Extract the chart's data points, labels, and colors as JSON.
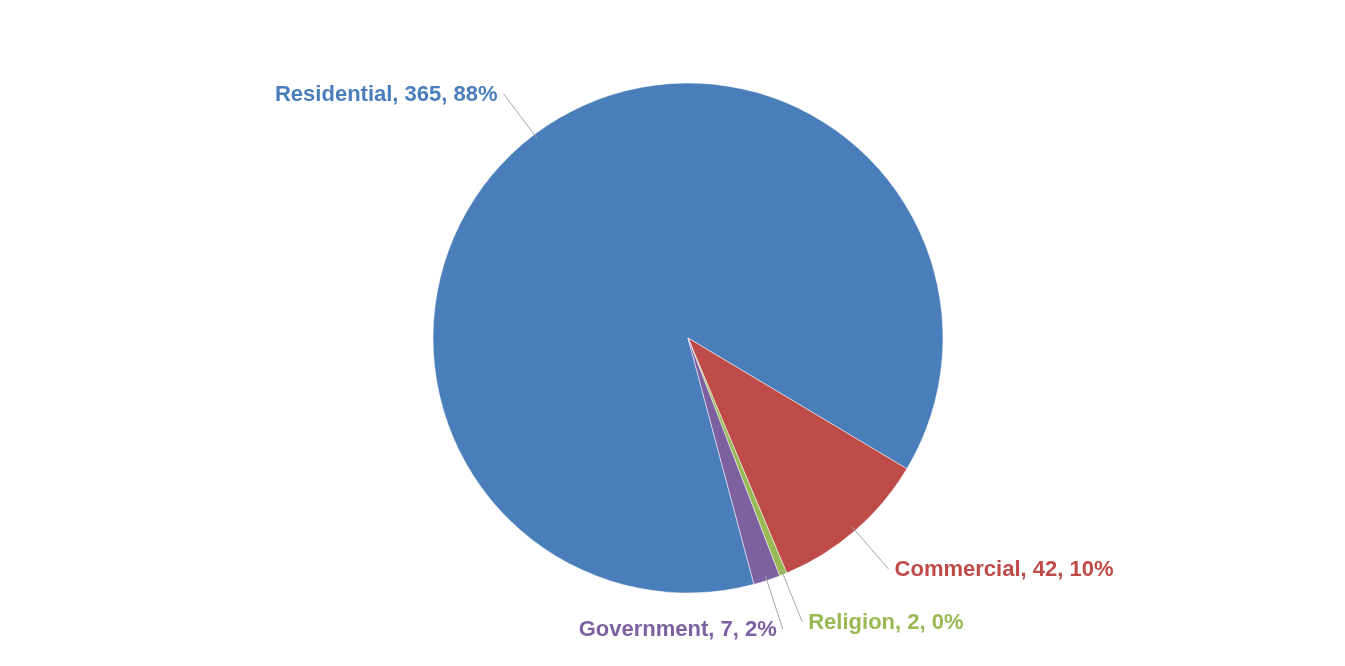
{
  "chart_data": {
    "type": "pie",
    "categories": [
      "Residential",
      "Commercial",
      "Religion",
      "Government"
    ],
    "values": [
      365,
      42,
      2,
      7
    ],
    "colors": [
      "#4a7ebb",
      "#be4b48",
      "#98b954",
      "#7d60a0"
    ],
    "value_labels": [
      ", 365, 88%",
      ", 42, 10%",
      ", 2, 0%",
      ", 7, 2%"
    ],
    "legend": false
  }
}
